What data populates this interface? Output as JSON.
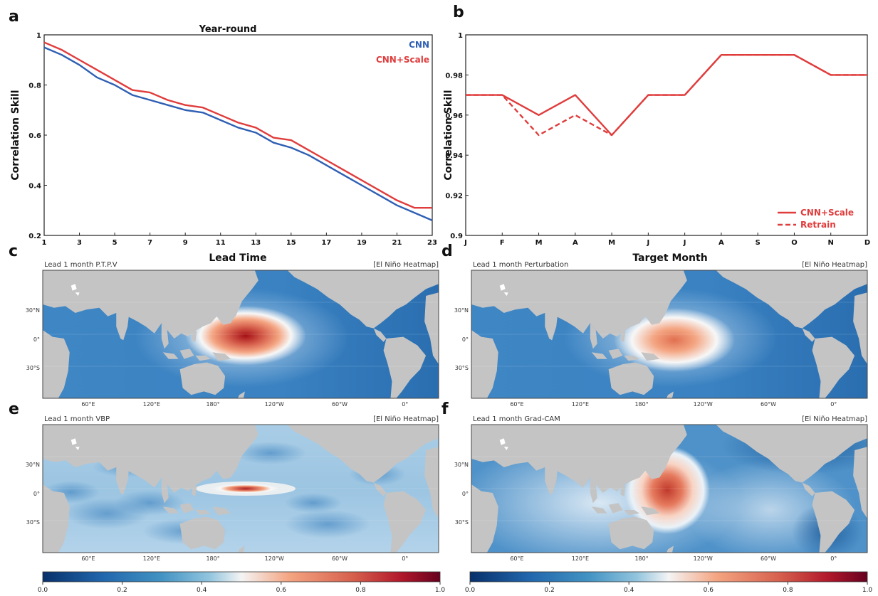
{
  "colors": {
    "cnn": "#2f5fb3",
    "scale": "#e03c3c",
    "ocean": "#3b84c3",
    "land": "#c4c4c4"
  },
  "chart_data": [
    {
      "id": "a",
      "type": "line",
      "panel_label": "a",
      "title": "Year-round",
      "xlabel": "Lead Time",
      "ylabel": "Correlation Skill",
      "xlim": [
        1,
        23
      ],
      "ylim": [
        0.2,
        1.0
      ],
      "xticks": [
        "1",
        "3",
        "5",
        "7",
        "9",
        "11",
        "13",
        "15",
        "17",
        "19",
        "21",
        "23"
      ],
      "yticks": [
        "0.2",
        "0.4",
        "0.6",
        "0.8",
        "1"
      ],
      "x": [
        1,
        2,
        3,
        4,
        5,
        6,
        7,
        8,
        9,
        10,
        11,
        12,
        13,
        14,
        15,
        16,
        17,
        18,
        19,
        20,
        21,
        22,
        23
      ],
      "series": [
        {
          "name": "CNN",
          "color": "#2f5fb3",
          "values": [
            0.95,
            0.92,
            0.88,
            0.83,
            0.8,
            0.76,
            0.74,
            0.72,
            0.7,
            0.69,
            0.66,
            0.63,
            0.61,
            0.57,
            0.55,
            0.52,
            0.48,
            0.44,
            0.4,
            0.36,
            0.32,
            0.29,
            0.26
          ]
        },
        {
          "name": "CNN+Scale",
          "color": "#e03c3c",
          "values": [
            0.97,
            0.94,
            0.9,
            0.86,
            0.82,
            0.78,
            0.77,
            0.74,
            0.72,
            0.71,
            0.68,
            0.65,
            0.63,
            0.59,
            0.58,
            0.54,
            0.5,
            0.46,
            0.42,
            0.38,
            0.34,
            0.31,
            0.31
          ]
        }
      ]
    },
    {
      "id": "b",
      "type": "line",
      "panel_label": "b",
      "xlabel": "Target Month",
      "ylabel": "Correlation Skill",
      "ylim": [
        0.9,
        1.0
      ],
      "categories": [
        "J",
        "F",
        "M",
        "A",
        "M",
        "J",
        "J",
        "A",
        "S",
        "O",
        "N",
        "D"
      ],
      "yticks": [
        "0.9",
        "0.92",
        "0.94",
        "0.96",
        "0.98",
        "1"
      ],
      "series": [
        {
          "name": "CNN+Scale",
          "color": "#e03c3c",
          "dash": "none",
          "values": [
            0.97,
            0.97,
            0.96,
            0.97,
            0.95,
            0.97,
            0.97,
            0.99,
            0.99,
            0.99,
            0.98,
            0.98
          ]
        },
        {
          "name": "Retrain",
          "color": "#e03c3c",
          "dash": "7,4",
          "values": [
            0.97,
            0.97,
            0.95,
            0.96,
            0.95,
            0.97,
            0.97,
            0.99,
            0.99,
            0.99,
            0.98,
            0.98
          ]
        }
      ]
    }
  ],
  "maps": [
    {
      "panel_label": "c",
      "title": "Lead 1 month P.T.P.V",
      "tag": "[El Niño Heatmap]",
      "style": "ptpv"
    },
    {
      "panel_label": "d",
      "title": "Lead 1 month Perturbation",
      "tag": "[El Niño Heatmap]",
      "style": "perturb"
    },
    {
      "panel_label": "e",
      "title": "Lead 1 month VBP",
      "tag": "[El Niño Heatmap]",
      "style": "vbp"
    },
    {
      "panel_label": "f",
      "title": "Lead 1 month Grad-CAM",
      "tag": "[El Niño Heatmap]",
      "style": "gradcam"
    }
  ],
  "map_axes": {
    "lat_labels": [
      "30°N",
      "0°",
      "30°S"
    ],
    "lon_labels": [
      "60°E",
      "120°E",
      "180°",
      "120°W",
      "60°W",
      "0°"
    ]
  },
  "colorbar": {
    "ticks": [
      "0.0",
      "0.2",
      "0.4",
      "0.6",
      "0.8",
      "1.0"
    ],
    "colormap": "RdBu_r"
  }
}
